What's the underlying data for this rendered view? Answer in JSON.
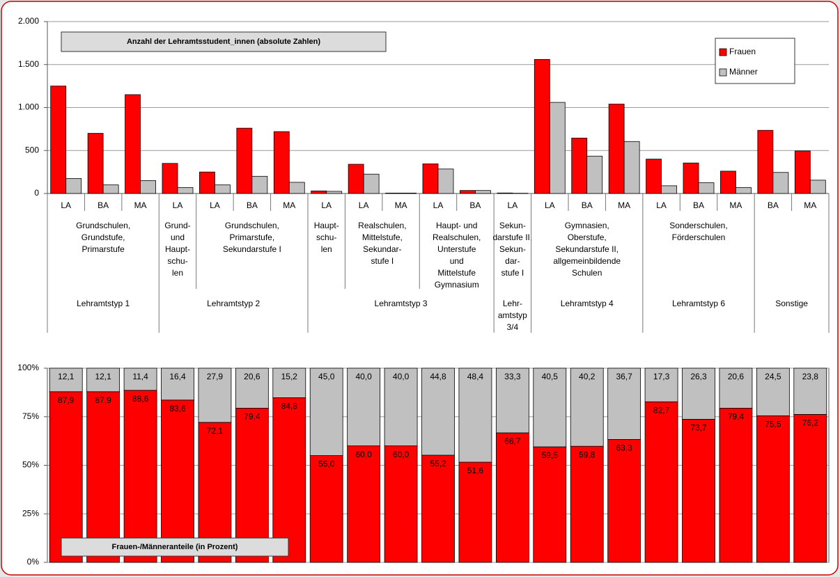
{
  "chart_data": [
    {
      "type": "bar",
      "title": "Anzahl der Lehramtsstudent_innen  (absolute Zahlen)",
      "category_groups": [
        {
          "label": [
            "Lehramtstyp 1"
          ],
          "groups": [
            {
              "label": [
                "Grundschulen,",
                "Grundstufe,",
                "Primarstufe"
              ],
              "categories": [
                "LA",
                "BA",
                "MA"
              ]
            }
          ]
        },
        {
          "label": [
            "Lehramtstyp 2"
          ],
          "groups": [
            {
              "label": [
                "Grund-",
                "und",
                "Haupt-",
                "schu-",
                "len"
              ],
              "categories": [
                "LA"
              ]
            },
            {
              "label": [
                "Grundschulen,",
                "Primarstufe,",
                "Sekundarstufe I"
              ],
              "categories": [
                "LA",
                "BA",
                "MA"
              ]
            }
          ]
        },
        {
          "label": [
            "Lehramtstyp 3"
          ],
          "groups": [
            {
              "label": [
                "Haupt-",
                "schu-",
                "len"
              ],
              "categories": [
                "LA"
              ]
            },
            {
              "label": [
                "Realschulen,",
                "Mittelstufe,",
                "Sekundar-",
                "stufe I"
              ],
              "categories": [
                "LA",
                "MA"
              ]
            },
            {
              "label": [
                "Haupt- und",
                "Realschulen,",
                "Unterstufe",
                "und",
                "Mittelstufe",
                "Gymnasium"
              ],
              "categories": [
                "LA",
                "BA"
              ]
            }
          ]
        },
        {
          "label": [
            "Lehr-",
            "amtstyp",
            "3/4"
          ],
          "groups": [
            {
              "label": [
                "Sekun-",
                "darstufe II,",
                "Sekun-",
                "dar-",
                "stufe I"
              ],
              "categories": [
                "LA"
              ]
            }
          ]
        },
        {
          "label": [
            "Lehramtstyp 4"
          ],
          "groups": [
            {
              "label": [
                "Gymnasien,",
                "Oberstufe,",
                "Sekundarstufe II,",
                "allgemeinbildende",
                "Schulen"
              ],
              "categories": [
                "LA",
                "BA",
                "MA"
              ]
            }
          ]
        },
        {
          "label": [
            "Lehramtstyp 6"
          ],
          "groups": [
            {
              "label": [
                "Sonderschulen,",
                "Förderschulen"
              ],
              "categories": [
                "LA",
                "BA",
                "MA"
              ]
            }
          ]
        },
        {
          "label": [
            "Sonstige"
          ],
          "groups": [
            {
              "categories": [
                "BA",
                "MA"
              ]
            }
          ]
        }
      ],
      "series": [
        {
          "name": "Frauen",
          "color": "#ff0000",
          "values": [
            1250,
            700,
            1150,
            350,
            250,
            760,
            720,
            30,
            340,
            5,
            345,
            35,
            6,
            1560,
            645,
            1040,
            400,
            355,
            260,
            735,
            495
          ]
        },
        {
          "name": "Männer",
          "color": "#c0c0c0",
          "values": [
            175,
            100,
            150,
            70,
            100,
            200,
            130,
            25,
            225,
            5,
            285,
            35,
            3,
            1060,
            435,
            605,
            90,
            125,
            70,
            245,
            155
          ]
        }
      ],
      "ylim": [
        0,
        2000
      ],
      "yticks": [
        0,
        500,
        {
          "value": 1000,
          "label": "1.000"
        },
        {
          "value": 1500,
          "label": "1.500"
        },
        {
          "value": 2000,
          "label": "2.000"
        }
      ],
      "grid": true,
      "legend": "upper right"
    },
    {
      "type": "stacked_bar",
      "title": "Frauen-/Männeranteile (in Prozent)",
      "series": [
        {
          "color": "#ff0000",
          "values": [
            87.9,
            87.9,
            88.6,
            83.6,
            72.1,
            79.4,
            84.8,
            55.0,
            60.0,
            60.0,
            55.2,
            51.6,
            66.7,
            59.5,
            59.8,
            63.3,
            82.7,
            73.7,
            79.4,
            75.5,
            76.2
          ],
          "value_labels": [
            "87,9",
            "87,9",
            "88,6",
            "83,6",
            "72,1",
            "79,4",
            "84,8",
            "55,0",
            "60,0",
            "60,0",
            "55,2",
            "51,6",
            "66,7",
            "59,5",
            "59,8",
            "63,3",
            "82,7",
            "73,7",
            "79,4",
            "75,5",
            "76,2"
          ]
        },
        {
          "color": "#c0c0c0",
          "values": [
            12.1,
            12.1,
            11.4,
            16.4,
            27.9,
            20.6,
            15.2,
            45.0,
            40.0,
            40.0,
            44.8,
            48.4,
            33.3,
            40.5,
            40.2,
            36.7,
            17.3,
            26.3,
            20.6,
            24.5,
            23.8
          ],
          "value_labels": [
            "12,1",
            "12,1",
            "11,4",
            "16,4",
            "27,9",
            "20,6",
            "15,2",
            "45,0",
            "40,0",
            "40,0",
            "44,8",
            "48,4",
            "33,3",
            "40,5",
            "40,2",
            "36,7",
            "17,3",
            "26,3",
            "20,6",
            "24,5",
            "23,8"
          ]
        }
      ],
      "ylim": [
        0,
        100
      ],
      "yticks": [
        {
          "value": 0,
          "label": "0%"
        },
        {
          "value": 25,
          "label": "25%"
        },
        {
          "value": 50,
          "label": "50%"
        },
        {
          "value": 75,
          "label": "75%"
        },
        {
          "value": 100,
          "label": "100%"
        }
      ],
      "grid": true
    }
  ]
}
